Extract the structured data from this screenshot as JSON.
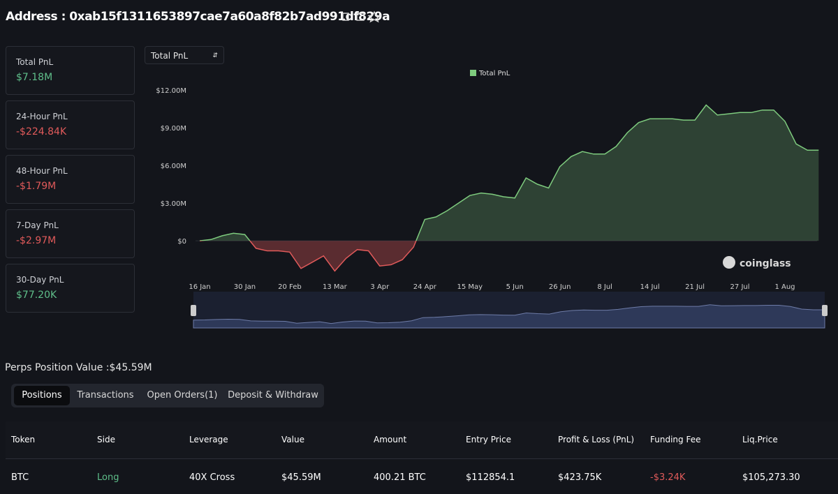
{
  "header": {
    "title": "Address : 0xab15f1311653897cae7a60a8f82b7ad991df829a"
  },
  "stats": [
    {
      "label": "Total PnL",
      "value": "$7.18M",
      "color": "#5fbf8a"
    },
    {
      "label": "24-Hour PnL",
      "value": "-$224.84K",
      "color": "#e05a5a"
    },
    {
      "label": "48-Hour PnL",
      "value": "-$1.79M",
      "color": "#e05a5a"
    },
    {
      "label": "7-Day PnL",
      "value": "-$2.97M",
      "color": "#e05a5a"
    },
    {
      "label": "30-Day PnL",
      "value": "$77.20K",
      "color": "#5fbf8a"
    }
  ],
  "selector": "Total PnL",
  "watermark": "coinglass",
  "chart_data": {
    "type": "area",
    "series": [
      {
        "name": "Total PnL",
        "color": "#7ecb7e",
        "negative_color": "#e05a5a",
        "values": [
          0,
          100000,
          400000,
          600000,
          500000,
          -600000,
          -800000,
          -800000,
          -900000,
          -2200000,
          -1700000,
          -1200000,
          -2400000,
          -1400000,
          -700000,
          -800000,
          -2000000,
          -1900000,
          -1500000,
          -500000,
          1700000,
          1900000,
          2400000,
          3000000,
          3600000,
          3800000,
          3700000,
          3500000,
          3400000,
          5000000,
          4500000,
          4200000,
          5900000,
          6700000,
          7100000,
          6900000,
          6900000,
          7500000,
          8600000,
          9400000,
          9700000,
          9700000,
          9700000,
          9600000,
          9600000,
          10800000,
          10000000,
          10100000,
          10200000,
          10200000,
          10400000,
          10400000,
          9500000,
          7700000,
          7200000,
          7200000
        ]
      }
    ],
    "categories": [
      "16 Jan",
      null,
      null,
      null,
      "30 Jan",
      null,
      null,
      null,
      "20 Feb",
      null,
      null,
      null,
      "13 Mar",
      null,
      null,
      null,
      "3 Apr",
      null,
      null,
      null,
      "24 Apr",
      null,
      null,
      null,
      "15 May",
      null,
      null,
      null,
      "5 Jun",
      null,
      null,
      null,
      "26 Jun",
      null,
      null,
      null,
      "8 Jul",
      null,
      null,
      null,
      "14 Jul",
      null,
      null,
      null,
      "21 Jul",
      null,
      null,
      null,
      "27 Jul",
      null,
      null,
      null,
      "1 Aug",
      null,
      null,
      null
    ],
    "ylim": [
      -3600000,
      13600000
    ],
    "yticks": [
      {
        "value": 0,
        "label": "$0"
      },
      {
        "value": 3000000,
        "label": "$3.00M"
      },
      {
        "value": 6000000,
        "label": "$6.00M"
      },
      {
        "value": 9000000,
        "label": "$9.00M"
      },
      {
        "value": 12000000,
        "label": "$12.00M"
      }
    ],
    "grid": false,
    "legend": "top"
  },
  "positions": {
    "summary": "Perps Position Value :$45.59M",
    "tabs": [
      "Positions",
      "Transactions",
      "Open Orders(1)",
      "Deposit & Withdraw"
    ],
    "table": {
      "columns": [
        "Token",
        "Side",
        "Leverage",
        "Value",
        "Amount",
        "Entry Price",
        "Profit & Loss (PnL)",
        "Funding Fee",
        "Liq.Price"
      ],
      "rows": [
        [
          "BTC",
          "Long",
          "40X Cross",
          "$45.59M",
          "400.21 BTC",
          "$112854.1",
          "$423.75K",
          "-$3.24K",
          "$105,273.30"
        ]
      ]
    }
  }
}
